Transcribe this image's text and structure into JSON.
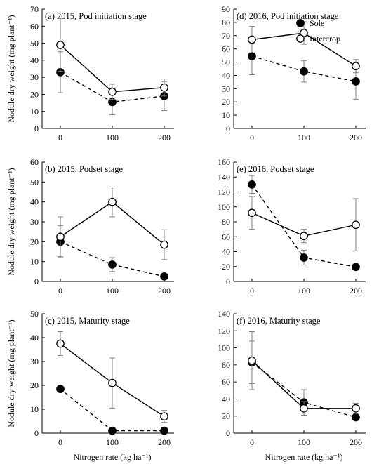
{
  "chart_data": [
    {
      "type": "line",
      "title": "(a) 2015, Pod initiation stage",
      "categories": [
        "0",
        "100",
        "200"
      ],
      "x": [
        0,
        100,
        200
      ],
      "ylim": [
        0,
        70
      ],
      "yticks": [
        0,
        10,
        20,
        30,
        40,
        50,
        60,
        70
      ],
      "xlabel": "",
      "ylabel": "Nodule dry weight  (mg  plant⁻¹)",
      "series": [
        {
          "name": "Sole",
          "marker": "filled-circle",
          "line": "dashed",
          "values": [
            33,
            15.5,
            19
          ],
          "err": [
            12,
            7.5,
            8.5
          ]
        },
        {
          "name": "Intercrop",
          "marker": "open-circle",
          "line": "solid",
          "values": [
            49,
            21.5,
            24
          ],
          "err": [
            15.5,
            4.5,
            5
          ]
        }
      ]
    },
    {
      "type": "line",
      "title": "(d) 2016, Pod initiation stage",
      "categories": [
        "0",
        "100",
        "200"
      ],
      "x": [
        0,
        100,
        200
      ],
      "ylim": [
        0,
        90
      ],
      "yticks": [
        0,
        10,
        20,
        30,
        40,
        50,
        60,
        70,
        80,
        90
      ],
      "xlabel": "",
      "ylabel": "",
      "legend": {
        "placement": "top-right",
        "entries": [
          "Sole",
          "Intercrop"
        ]
      },
      "series": [
        {
          "name": "Sole",
          "marker": "filled-circle",
          "line": "dashed",
          "values": [
            54.5,
            43,
            35.5
          ],
          "err": [
            14,
            8,
            13.5
          ]
        },
        {
          "name": "Intercrop",
          "marker": "open-circle",
          "line": "solid",
          "values": [
            67,
            72,
            47
          ],
          "err": [
            10,
            8.5,
            5
          ]
        }
      ]
    },
    {
      "type": "line",
      "title": "(b) 2015, Podset stage",
      "categories": [
        "0",
        "100",
        "200"
      ],
      "x": [
        0,
        100,
        200
      ],
      "ylim": [
        0,
        60
      ],
      "yticks": [
        0,
        10,
        20,
        30,
        40,
        50,
        60
      ],
      "xlabel": "",
      "ylabel": "Nodule dry weight  (mg  plant⁻¹)",
      "series": [
        {
          "name": "Sole",
          "marker": "filled-circle",
          "line": "dashed",
          "values": [
            20,
            8.5,
            2.5
          ],
          "err": [
            8,
            3.5,
            0
          ]
        },
        {
          "name": "Intercrop",
          "marker": "open-circle",
          "line": "solid",
          "values": [
            22.5,
            40,
            18.5
          ],
          "err": [
            10,
            7.5,
            7.5
          ]
        }
      ]
    },
    {
      "type": "line",
      "title": "(e) 2016, Podset stage",
      "categories": [
        "0",
        "100",
        "200"
      ],
      "x": [
        0,
        100,
        200
      ],
      "ylim": [
        0,
        160
      ],
      "yticks": [
        0,
        20,
        40,
        60,
        80,
        100,
        120,
        140,
        160
      ],
      "xlabel": "",
      "ylabel": "",
      "series": [
        {
          "name": "Sole",
          "marker": "filled-circle",
          "line": "dashed",
          "values": [
            130,
            32,
            19.5
          ],
          "err": [
            12,
            10,
            0
          ]
        },
        {
          "name": "Intercrop",
          "marker": "open-circle",
          "line": "solid",
          "values": [
            92,
            61,
            76
          ],
          "err": [
            22,
            9,
            35
          ]
        }
      ]
    },
    {
      "type": "line",
      "title": "(c) 2015, Maturity stage",
      "categories": [
        "0",
        "100",
        "200"
      ],
      "x": [
        0,
        100,
        200
      ],
      "ylim": [
        0,
        50
      ],
      "yticks": [
        0,
        10,
        20,
        30,
        40,
        50
      ],
      "xlabel": "Nitrogen rate (kg ha⁻¹)",
      "ylabel": "Nodule dry weight  (mg  plant⁻¹)",
      "series": [
        {
          "name": "Sole",
          "marker": "filled-circle",
          "line": "dashed",
          "values": [
            18.5,
            1,
            1
          ],
          "err": [
            0,
            0,
            0
          ]
        },
        {
          "name": "Intercrop",
          "marker": "open-circle",
          "line": "solid",
          "values": [
            37.5,
            21,
            7
          ],
          "err": [
            5,
            10.5,
            2.5
          ]
        }
      ]
    },
    {
      "type": "line",
      "title": "(f) 2016, Maturity stage",
      "categories": [
        "0",
        "100",
        "200"
      ],
      "x": [
        0,
        100,
        200
      ],
      "ylim": [
        0,
        140
      ],
      "yticks": [
        0,
        20,
        40,
        60,
        80,
        100,
        120,
        140
      ],
      "xlabel": "Nitrogen rate (kg ha⁻¹)",
      "ylabel": "",
      "series": [
        {
          "name": "Sole",
          "marker": "filled-circle",
          "line": "dashed",
          "values": [
            83,
            36,
            18.5
          ],
          "err": [
            25,
            15,
            0
          ]
        },
        {
          "name": "Intercrop",
          "marker": "open-circle",
          "line": "solid",
          "values": [
            85,
            29,
            29
          ],
          "err": [
            34,
            8,
            6
          ]
        }
      ]
    }
  ]
}
